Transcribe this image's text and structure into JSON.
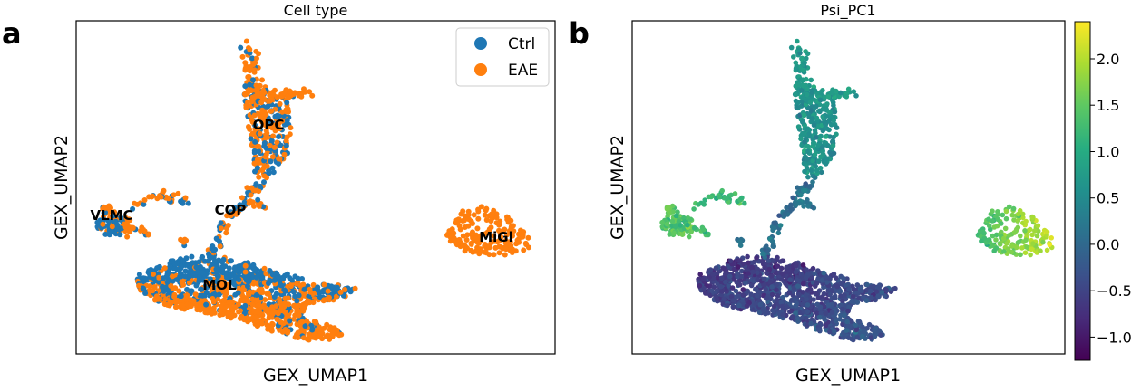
{
  "panels": [
    {
      "letter": "a",
      "title": "Cell type",
      "xlabel": "GEX_UMAP1",
      "ylabel": "GEX_UMAP2",
      "legend": [
        {
          "label": "Ctrl",
          "color": "#1f77b4"
        },
        {
          "label": "EAE",
          "color": "#ff7f0e"
        }
      ],
      "annotations": [
        "OPC",
        "COP",
        "VLMC",
        "MOL",
        "MiGl"
      ]
    },
    {
      "letter": "b",
      "title": "Psi_PC1",
      "xlabel": "GEX_UMAP1",
      "ylabel": "GEX_UMAP2",
      "colorbar": {
        "ticks": [
          "2.0",
          "1.5",
          "1.0",
          "0.5",
          "0.0",
          "−0.5",
          "−1.0"
        ],
        "range": [
          -1.25,
          2.4
        ],
        "colormap": "viridis"
      }
    }
  ],
  "chart_data": [
    {
      "type": "scatter",
      "title": "Cell type",
      "xlabel": "GEX_UMAP1",
      "ylabel": "GEX_UMAP2",
      "legend_position": "top-right",
      "ticks_shown": false,
      "series": [
        {
          "name": "Ctrl",
          "color": "#1f77b4"
        },
        {
          "name": "EAE",
          "color": "#ff7f0e"
        }
      ],
      "annotations": [
        "OPC",
        "COP",
        "VLMC",
        "MOL",
        "MiGl"
      ]
    },
    {
      "type": "scatter",
      "title": "Psi_PC1",
      "xlabel": "GEX_UMAP1",
      "ylabel": "GEX_UMAP2",
      "colormap": "viridis",
      "ticks_shown": false,
      "colorbar_range": [
        -1.25,
        2.4
      ],
      "colorbar_ticks": [
        2.0,
        1.5,
        1.0,
        0.5,
        0.0,
        -0.5,
        -1.0
      ]
    }
  ]
}
